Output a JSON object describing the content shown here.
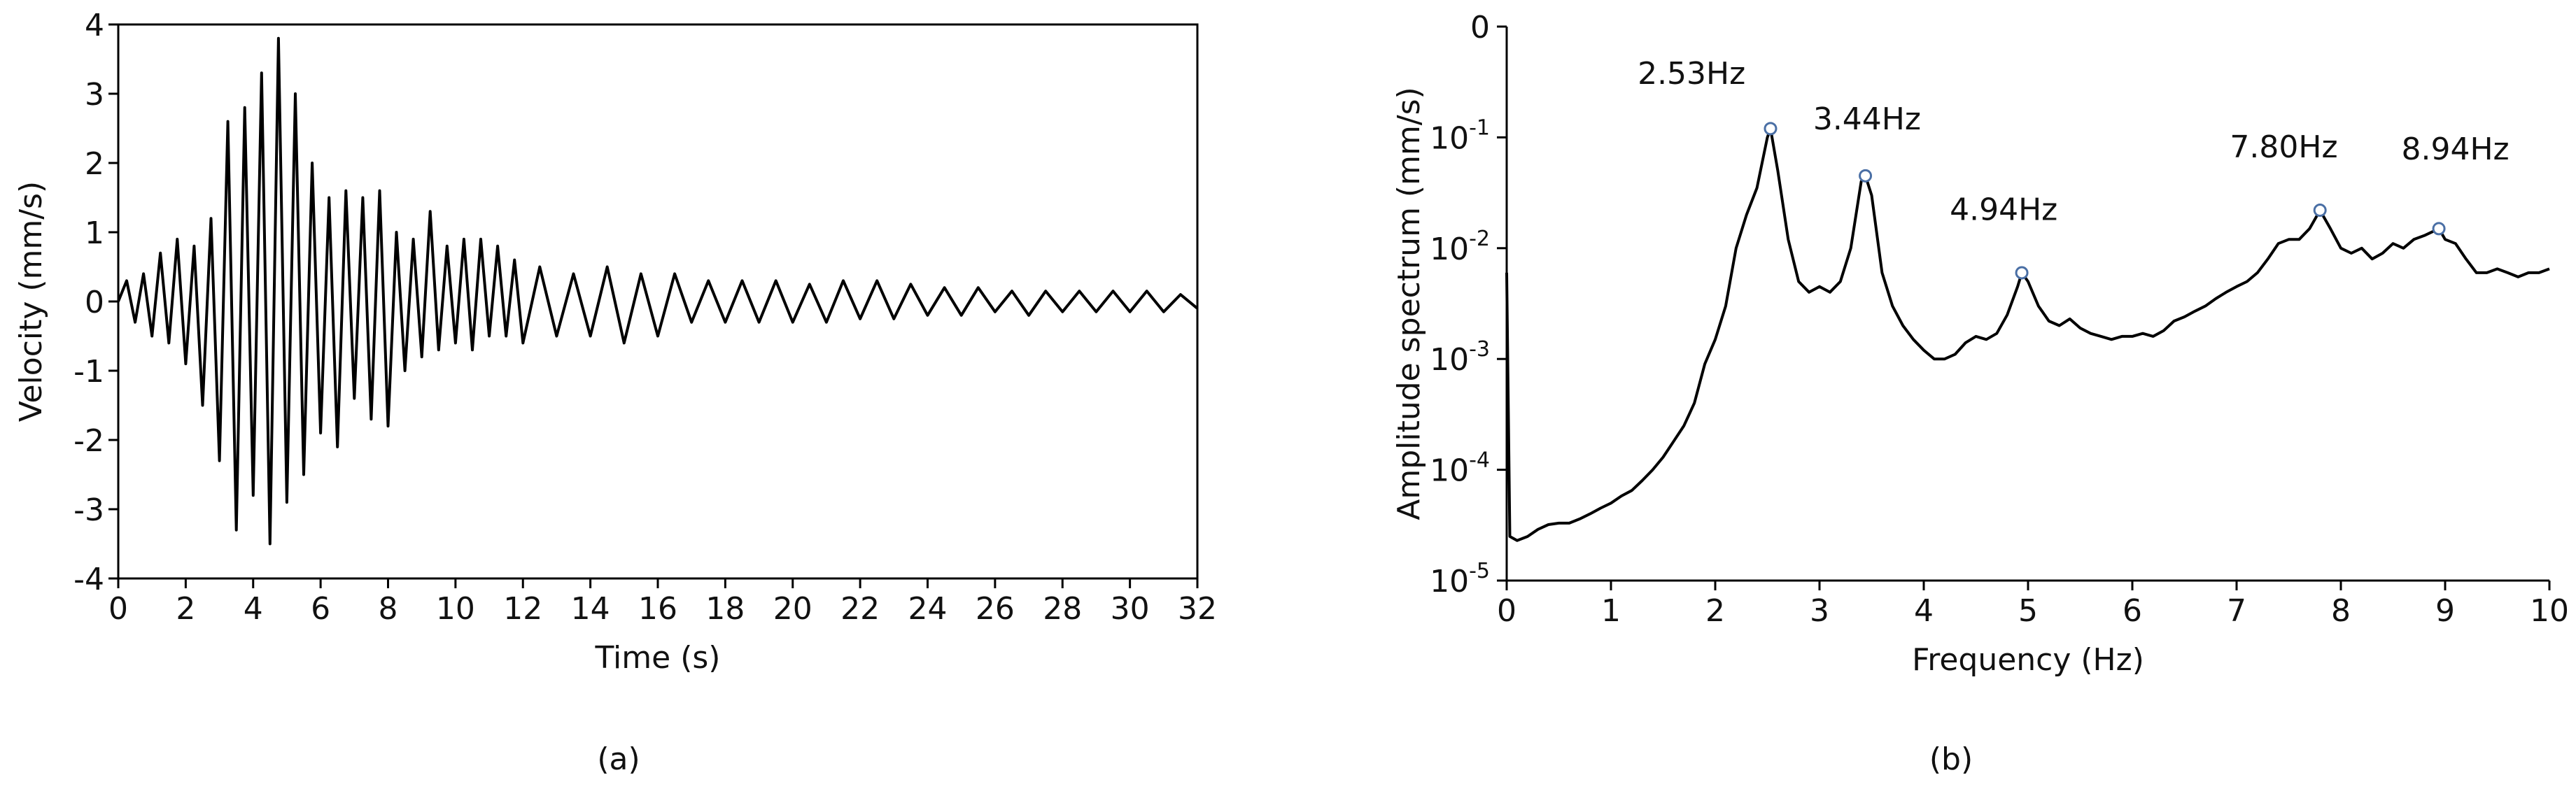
{
  "chart_data": [
    {
      "type": "line",
      "caption": "(a)",
      "xlabel": "Time (s)",
      "ylabel": "Velocity (mm/s)",
      "frame": true,
      "color": "#000000",
      "xlim": [
        0,
        32
      ],
      "xticks": [
        0,
        2,
        4,
        6,
        8,
        10,
        12,
        14,
        16,
        18,
        20,
        22,
        24,
        26,
        28,
        30,
        32
      ],
      "ylim": [
        -4,
        4
      ],
      "yticks": [
        -4,
        -3,
        -2,
        -1,
        0,
        1,
        2,
        3,
        4
      ],
      "x": [
        0,
        0.25,
        0.5,
        0.75,
        1,
        1.25,
        1.5,
        1.75,
        2,
        2.25,
        2.5,
        2.75,
        3,
        3.25,
        3.5,
        3.75,
        4,
        4.25,
        4.5,
        4.75,
        5,
        5.25,
        5.5,
        5.75,
        6,
        6.25,
        6.5,
        6.75,
        7,
        7.25,
        7.5,
        7.75,
        8,
        8.25,
        8.5,
        8.75,
        9,
        9.25,
        9.5,
        9.75,
        10,
        10.25,
        10.5,
        10.75,
        11,
        11.25,
        11.5,
        11.75,
        12,
        12.5,
        13,
        13.5,
        14,
        14.5,
        15,
        15.5,
        16,
        16.5,
        17,
        17.5,
        18,
        18.5,
        19,
        19.5,
        20,
        20.5,
        21,
        21.5,
        22,
        22.5,
        23,
        23.5,
        24,
        24.5,
        25,
        25.5,
        26,
        26.5,
        27,
        27.5,
        28,
        28.5,
        29,
        29.5,
        30,
        30.5,
        31,
        31.5,
        32
      ],
      "values": [
        0,
        0.3,
        -0.3,
        0.4,
        -0.5,
        0.7,
        -0.6,
        0.9,
        -0.9,
        0.8,
        -1.5,
        1.2,
        -2.3,
        2.6,
        -3.3,
        2.8,
        -2.8,
        3.3,
        -3.5,
        3.8,
        -2.9,
        3.0,
        -2.5,
        2.0,
        -1.9,
        1.5,
        -2.1,
        1.6,
        -1.4,
        1.5,
        -1.7,
        1.6,
        -1.8,
        1.0,
        -1.0,
        0.9,
        -0.8,
        1.3,
        -0.7,
        0.8,
        -0.6,
        0.9,
        -0.7,
        0.9,
        -0.5,
        0.8,
        -0.5,
        0.6,
        -0.6,
        0.5,
        -0.5,
        0.4,
        -0.5,
        0.5,
        -0.6,
        0.4,
        -0.5,
        0.4,
        -0.3,
        0.3,
        -0.3,
        0.3,
        -0.3,
        0.3,
        -0.3,
        0.25,
        -0.3,
        0.3,
        -0.25,
        0.3,
        -0.25,
        0.25,
        -0.2,
        0.2,
        -0.2,
        0.2,
        -0.15,
        0.15,
        -0.2,
        0.15,
        -0.15,
        0.15,
        -0.15,
        0.15,
        -0.15,
        0.15,
        -0.15,
        0.1,
        -0.1
      ]
    },
    {
      "type": "line",
      "caption": "(b)",
      "xlabel": "Frequency (Hz)",
      "ylabel": "Amplitude spectrum (mm/s)",
      "frame": false,
      "yscale": "log",
      "color": "#000000",
      "marker_color": "#4a6fa5",
      "xlim": [
        0,
        10
      ],
      "xticks": [
        0,
        1,
        2,
        3,
        4,
        5,
        6,
        7,
        8,
        9,
        10
      ],
      "ylim": [
        1e-05,
        1
      ],
      "yticks": [
        {
          "value": 1e-05,
          "label": "10",
          "exponent": "-5"
        },
        {
          "value": 0.0001,
          "label": "10",
          "exponent": "-4"
        },
        {
          "value": 0.001,
          "label": "10",
          "exponent": "-3"
        },
        {
          "value": 0.01,
          "label": "10",
          "exponent": "-2"
        },
        {
          "value": 0.1,
          "label": "10",
          "exponent": "-1"
        },
        {
          "value": 1,
          "label": "0"
        }
      ],
      "x": [
        0,
        0.03,
        0.1,
        0.2,
        0.3,
        0.4,
        0.5,
        0.6,
        0.7,
        0.8,
        0.9,
        1,
        1.1,
        1.2,
        1.3,
        1.4,
        1.5,
        1.6,
        1.7,
        1.8,
        1.9,
        2,
        2.1,
        2.2,
        2.3,
        2.4,
        2.5,
        2.53,
        2.6,
        2.7,
        2.8,
        2.9,
        3,
        3.1,
        3.2,
        3.3,
        3.4,
        3.44,
        3.5,
        3.6,
        3.7,
        3.8,
        3.9,
        4,
        4.1,
        4.2,
        4.3,
        4.4,
        4.5,
        4.6,
        4.7,
        4.8,
        4.9,
        4.94,
        5,
        5.1,
        5.2,
        5.3,
        5.4,
        5.5,
        5.6,
        5.7,
        5.8,
        5.9,
        6,
        6.1,
        6.2,
        6.3,
        6.4,
        6.5,
        6.6,
        6.7,
        6.8,
        6.9,
        7,
        7.1,
        7.2,
        7.3,
        7.4,
        7.5,
        7.6,
        7.7,
        7.8,
        7.9,
        8,
        8.1,
        8.2,
        8.3,
        8.4,
        8.5,
        8.6,
        8.7,
        8.8,
        8.94,
        9,
        9.1,
        9.2,
        9.3,
        9.4,
        9.5,
        9.6,
        9.7,
        9.8,
        9.9,
        10
      ],
      "values": [
        0.006,
        2.5e-05,
        2.3e-05,
        2.5e-05,
        2.9e-05,
        3.2e-05,
        3.3e-05,
        3.3e-05,
        3.6e-05,
        4e-05,
        4.5e-05,
        5e-05,
        5.8e-05,
        6.5e-05,
        8e-05,
        0.0001,
        0.00013,
        0.00018,
        0.00025,
        0.0004,
        0.0009,
        0.0015,
        0.003,
        0.01,
        0.02,
        0.035,
        0.1,
        0.12,
        0.05,
        0.012,
        0.005,
        0.004,
        0.0045,
        0.004,
        0.005,
        0.01,
        0.04,
        0.045,
        0.03,
        0.006,
        0.003,
        0.002,
        0.0015,
        0.0012,
        0.001,
        0.001,
        0.0011,
        0.0014,
        0.0016,
        0.0015,
        0.0017,
        0.0025,
        0.0045,
        0.006,
        0.005,
        0.003,
        0.0022,
        0.002,
        0.0023,
        0.0019,
        0.0017,
        0.0016,
        0.0015,
        0.0016,
        0.0016,
        0.0017,
        0.0016,
        0.0018,
        0.0022,
        0.0024,
        0.0027,
        0.003,
        0.0035,
        0.004,
        0.0045,
        0.005,
        0.006,
        0.008,
        0.011,
        0.012,
        0.012,
        0.015,
        0.022,
        0.015,
        0.01,
        0.009,
        0.01,
        0.008,
        0.009,
        0.011,
        0.01,
        0.012,
        0.013,
        0.015,
        0.012,
        0.011,
        0.008,
        0.006,
        0.006,
        0.0065,
        0.006,
        0.0055,
        0.006,
        0.006,
        0.0065
      ],
      "peaks": [
        {
          "x": 2.53,
          "y": 0.12,
          "label": "2.53Hz"
        },
        {
          "x": 3.44,
          "y": 0.045,
          "label": "3.44Hz"
        },
        {
          "x": 4.94,
          "y": 0.006,
          "label": "4.94Hz"
        },
        {
          "x": 7.8,
          "y": 0.022,
          "label": "7.80Hz"
        },
        {
          "x": 8.94,
          "y": 0.015,
          "label": "8.94Hz"
        }
      ]
    }
  ]
}
